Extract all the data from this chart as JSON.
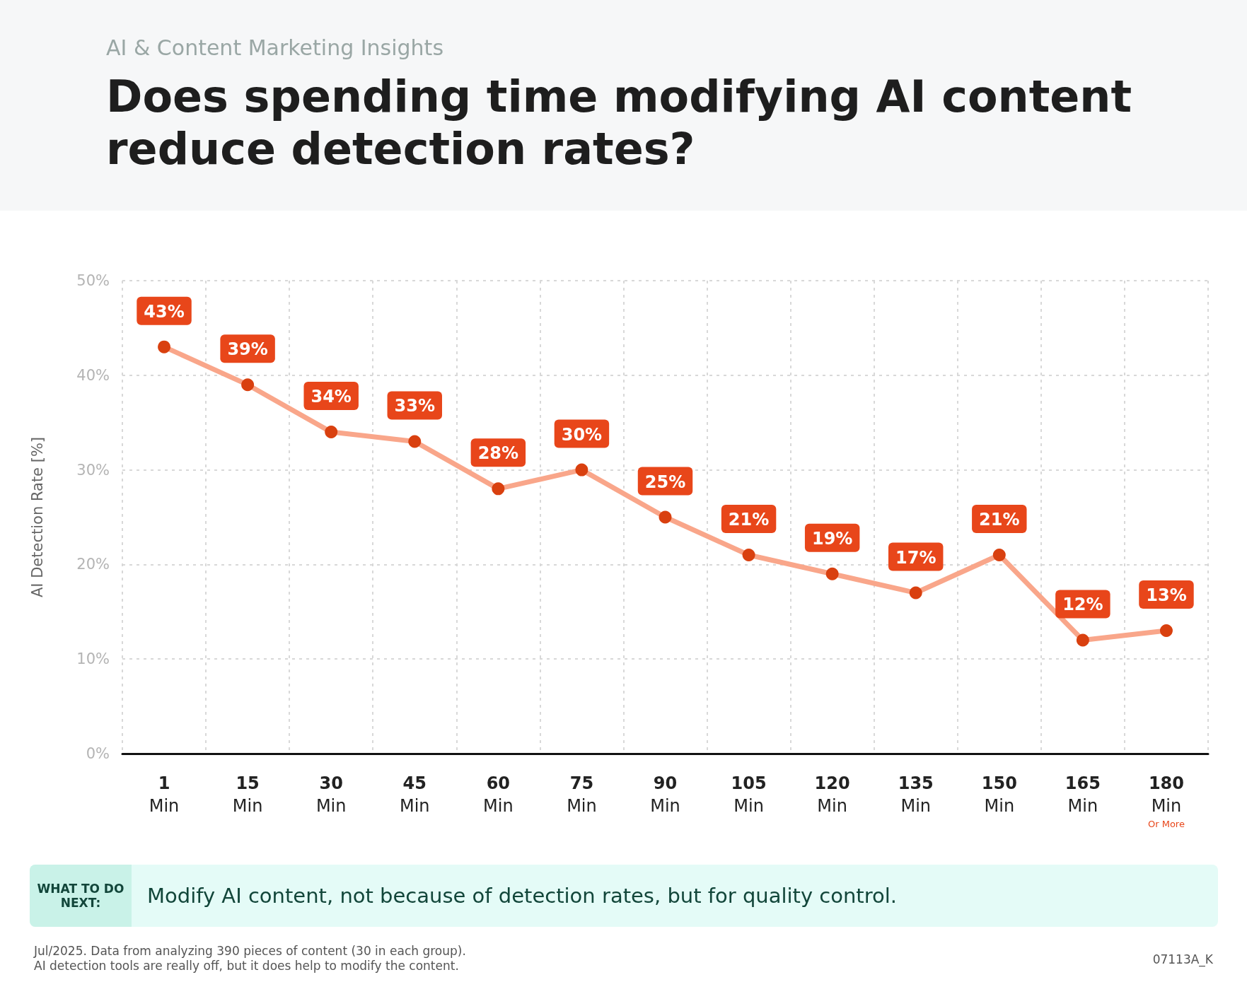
{
  "chart_data": {
    "type": "line",
    "subtitle": "AI & Content Marketing Insights",
    "title": "Does spending time modifying AI content reduce detection rates?",
    "ylabel": "AI Detection Rate [%]",
    "categories": [
      "1\nMin",
      "15\nMin",
      "30\nMin",
      "45\nMin",
      "60\nMin",
      "75\nMin",
      "90\nMin",
      "105\nMin",
      "120\nMin",
      "135\nMin",
      "150\nMin",
      "165\nMin",
      "180\nMin\nOr More"
    ],
    "series": [
      {
        "color": "#f9a68a",
        "values": [
          43,
          39,
          34,
          33,
          28,
          30,
          25,
          21,
          19,
          17,
          21,
          12,
          13
        ],
        "value_labels": [
          "43%",
          "39%",
          "34%",
          "33%",
          "28%",
          "30%",
          "25%",
          "21%",
          "19%",
          "17%",
          "21%",
          "12%",
          "13%"
        ]
      }
    ],
    "ylim": [
      0,
      50
    ],
    "yticks": [
      {
        "value": 0,
        "label": "0%"
      },
      {
        "value": 10,
        "label": "10%"
      },
      {
        "value": 20,
        "label": "20%"
      },
      {
        "value": 30,
        "label": "30%"
      },
      {
        "value": 40,
        "label": "40%"
      },
      {
        "value": 50,
        "label": "50%"
      }
    ],
    "grid": true,
    "marker": "circle",
    "line_style": "solid",
    "annotations": [
      "WHAT TO DO NEXT:",
      "Modify AI content, not because of detection rates, but for quality control.",
      "Jul/2025. Data from analyzing 390 pieces of content (30 in each group).\nAI detection tools are really off, but it does help to modify the content.",
      "07113A_K"
    ]
  }
}
